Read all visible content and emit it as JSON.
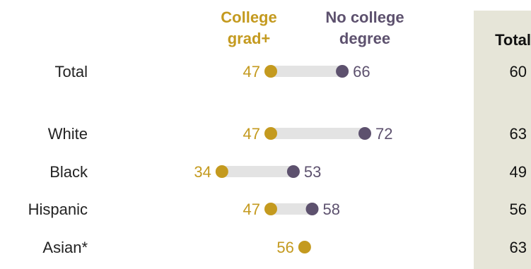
{
  "legend": {
    "college": "College\ngrad+",
    "no_college": "No college\ndegree",
    "total_header": "Total"
  },
  "colors": {
    "college": "#c49a1f",
    "no_college": "#5d516e",
    "connector": "#e3e3e3",
    "total_bg": "#e6e5d8",
    "label": "#222222"
  },
  "chart_data": {
    "type": "dot",
    "categories": [
      "Total",
      "White",
      "Black",
      "Hispanic",
      "Asian*"
    ],
    "series": [
      {
        "name": "College grad+",
        "values": [
          47,
          47,
          34,
          47,
          56
        ]
      },
      {
        "name": "No college degree",
        "values": [
          66,
          72,
          53,
          58,
          null
        ]
      },
      {
        "name": "Total",
        "values": [
          60,
          63,
          49,
          56,
          63
        ]
      }
    ]
  }
}
